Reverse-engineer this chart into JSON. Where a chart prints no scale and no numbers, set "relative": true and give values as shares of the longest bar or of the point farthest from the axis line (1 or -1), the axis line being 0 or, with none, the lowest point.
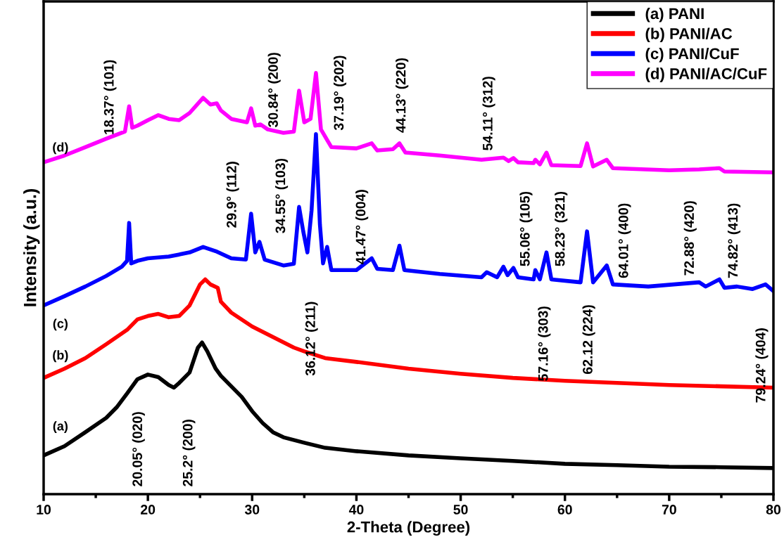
{
  "chart_data": {
    "type": "line",
    "relative": true,
    "xlabel": "2-Theta (Degree)",
    "ylabel": "Intensity (a.u.)",
    "xlim": [
      10,
      80
    ],
    "xticks": [
      10,
      20,
      30,
      40,
      50,
      60,
      70,
      80
    ],
    "legend": "top right",
    "grid": false,
    "tick_labels": "x",
    "series": [
      {
        "name": "(a) PANI",
        "color": "#000000",
        "x": [
          10,
          12,
          14,
          16,
          17,
          18,
          19,
          20,
          21,
          22,
          22.5,
          23,
          24,
          24.8,
          25.2,
          25.7,
          26.5,
          27,
          28,
          29,
          30,
          31,
          32,
          33,
          35,
          37,
          40,
          45,
          50,
          55,
          60,
          65,
          70,
          75,
          80
        ],
        "values": [
          0.092,
          0.114,
          0.147,
          0.181,
          0.206,
          0.239,
          0.273,
          0.284,
          0.278,
          0.259,
          0.253,
          0.264,
          0.289,
          0.348,
          0.36,
          0.339,
          0.298,
          0.281,
          0.256,
          0.231,
          0.197,
          0.169,
          0.147,
          0.135,
          0.122,
          0.11,
          0.102,
          0.092,
          0.085,
          0.079,
          0.072,
          0.069,
          0.065,
          0.064,
          0.062
        ]
      },
      {
        "name": "(b) PANI/AC",
        "color": "#ff0000",
        "x": [
          10,
          12,
          14,
          16,
          18,
          19,
          20,
          21,
          22,
          23,
          24,
          25,
          25.5,
          26,
          26.7,
          27,
          28,
          30,
          32,
          34,
          35,
          36,
          37,
          40,
          45,
          50,
          55,
          60,
          65,
          70,
          75,
          80
        ],
        "values": [
          0.276,
          0.298,
          0.323,
          0.356,
          0.39,
          0.415,
          0.423,
          0.428,
          0.42,
          0.423,
          0.448,
          0.498,
          0.51,
          0.498,
          0.49,
          0.457,
          0.431,
          0.398,
          0.373,
          0.348,
          0.339,
          0.331,
          0.323,
          0.314,
          0.298,
          0.286,
          0.276,
          0.269,
          0.264,
          0.259,
          0.256,
          0.253
        ]
      },
      {
        "name": "(c) PANI/CuF",
        "color": "#0000ff",
        "x": [
          10,
          12,
          14,
          16,
          17.5,
          18.0,
          18.2,
          18.4,
          19,
          20,
          22,
          24,
          25.3,
          26.5,
          28,
          29.4,
          29.9,
          30.3,
          30.7,
          31.2,
          33,
          34,
          34.5,
          34.9,
          35.3,
          35.7,
          36.12,
          36.5,
          36.8,
          37.19,
          37.6,
          40,
          41.47,
          42,
          43.5,
          44.13,
          44.6,
          48,
          52,
          52.5,
          53.5,
          54.1,
          54.5,
          55.06,
          55.5,
          57,
          57.16,
          57.6,
          58.23,
          58.7,
          61.5,
          62.12,
          62.7,
          64.01,
          64.6,
          68,
          72.88,
          73.5,
          74.82,
          75.3,
          76.5,
          78,
          79.24,
          80
        ],
        "values": [
          0.448,
          0.47,
          0.493,
          0.518,
          0.54,
          0.554,
          0.644,
          0.548,
          0.554,
          0.56,
          0.564,
          0.574,
          0.587,
          0.577,
          0.56,
          0.557,
          0.666,
          0.574,
          0.599,
          0.557,
          0.543,
          0.547,
          0.682,
          0.624,
          0.574,
          0.674,
          0.855,
          0.64,
          0.548,
          0.587,
          0.532,
          0.532,
          0.56,
          0.535,
          0.532,
          0.59,
          0.532,
          0.523,
          0.515,
          0.527,
          0.515,
          0.54,
          0.52,
          0.537,
          0.515,
          0.51,
          0.532,
          0.51,
          0.574,
          0.51,
          0.503,
          0.624,
          0.503,
          0.543,
          0.498,
          0.493,
          0.503,
          0.493,
          0.51,
          0.49,
          0.493,
          0.487,
          0.498,
          0.482
        ]
      },
      {
        "name": "(d) PANI/AC/CuF",
        "color": "#ff00ff",
        "x": [
          10,
          12,
          14,
          16,
          17.8,
          18.2,
          18.5,
          19,
          20,
          21,
          22,
          23,
          24,
          25.3,
          26,
          26.6,
          27,
          28,
          29.5,
          29.9,
          30.3,
          30.8,
          31.5,
          33,
          34,
          34.5,
          35,
          35.6,
          36.12,
          36.6,
          37.19,
          37.6,
          40,
          41.47,
          42,
          43.5,
          44.13,
          44.7,
          48,
          52,
          54.11,
          54.6,
          55.06,
          55.5,
          57,
          57.16,
          57.6,
          58.23,
          58.7,
          61.5,
          62.12,
          62.7,
          64.01,
          64.6,
          70,
          72.88,
          74.82,
          75.3,
          80
        ],
        "values": [
          0.788,
          0.804,
          0.824,
          0.844,
          0.861,
          0.921,
          0.87,
          0.875,
          0.888,
          0.9,
          0.891,
          0.888,
          0.905,
          0.941,
          0.925,
          0.928,
          0.911,
          0.891,
          0.883,
          0.916,
          0.875,
          0.878,
          0.866,
          0.858,
          0.861,
          0.958,
          0.883,
          0.891,
          1,
          0.866,
          0.841,
          0.824,
          0.821,
          0.833,
          0.816,
          0.819,
          0.833,
          0.811,
          0.804,
          0.794,
          0.799,
          0.791,
          0.798,
          0.788,
          0.786,
          0.794,
          0.783,
          0.811,
          0.781,
          0.779,
          0.833,
          0.778,
          0.794,
          0.774,
          0.769,
          0.771,
          0.774,
          0.766,
          0.764
        ]
      }
    ],
    "annotations": [
      "(a)",
      "(b)",
      "(c)",
      "(d)",
      "18.37° (101)",
      "30.84° (200)",
      "37.19° (202)",
      "44.13° (220)",
      "54.11° (312)",
      "29.9° (112)",
      "34.55° (103)",
      "36.12° (211)",
      "41.47° (004)",
      "55.06° (105)",
      "58.23° (321)",
      "57.16° (303)",
      "62.12 (224)",
      "64.01° (400)",
      "72.88° (420)",
      "74.82° (413)",
      "79.24° (404)",
      "20.05° (020)",
      "25.2° (200)"
    ]
  }
}
